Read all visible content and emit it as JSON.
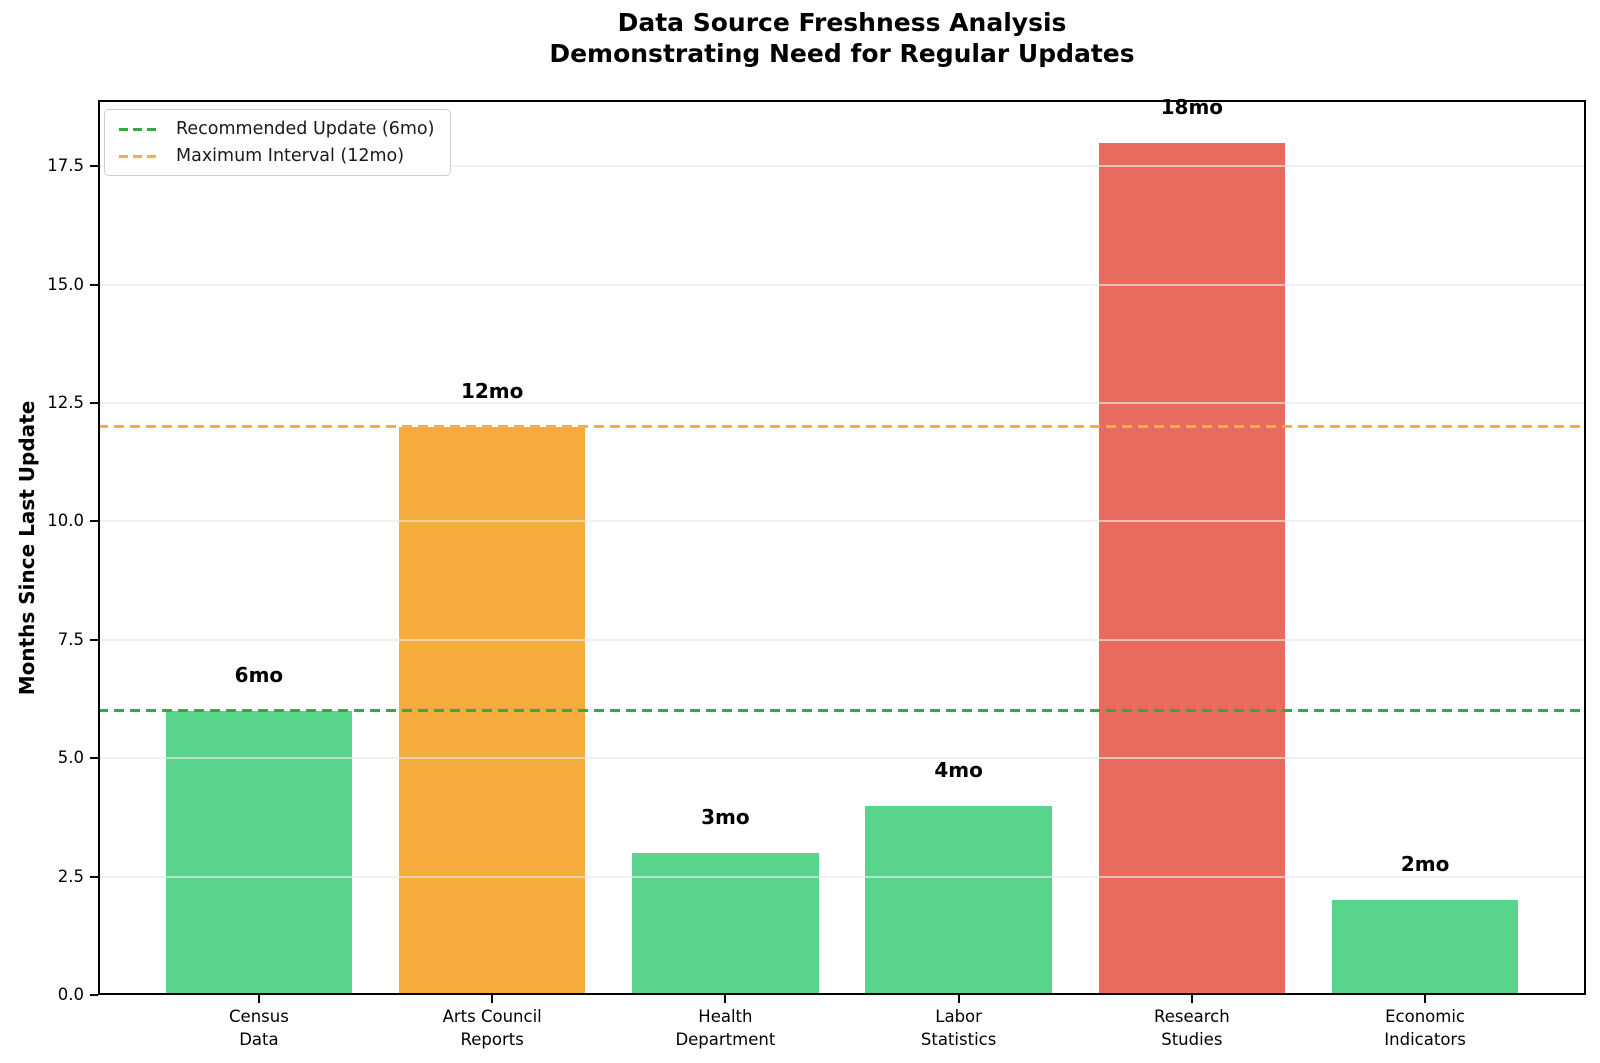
{
  "chart_data": {
    "type": "bar",
    "title": "Data Source Freshness Analysis\nDemonstrating Need for Regular Updates",
    "ylabel": "Months Since Last Update",
    "xlabel": "",
    "categories": [
      "Census\nData",
      "Arts Council\nReports",
      "Health\nDepartment",
      "Labor\nStatistics",
      "Research\nStudies",
      "Economic\nIndicators"
    ],
    "values": [
      6,
      12,
      3,
      4,
      18,
      2
    ],
    "bar_labels": [
      "6mo",
      "12mo",
      "3mo",
      "4mo",
      "18mo",
      "2mo"
    ],
    "bar_colors": [
      "#58D48C",
      "#F5AC3D",
      "#58D48C",
      "#58D48C",
      "#E96B5D",
      "#58D48C"
    ],
    "ylim": [
      0,
      18.9
    ],
    "yticks": [
      0.0,
      2.5,
      5.0,
      7.5,
      10.0,
      12.5,
      15.0,
      17.5
    ],
    "ytick_labels": [
      "0.0",
      "2.5",
      "5.0",
      "7.5",
      "10.0",
      "12.5",
      "15.0",
      "17.5"
    ],
    "grid": true,
    "legend_position": "upper left",
    "reference_lines": [
      {
        "label": "Recommended Update (6mo)",
        "value": 6,
        "color": "#3CA63E"
      },
      {
        "label": "Maximum Interval (12mo)",
        "value": 12,
        "color": "#FDAE3C"
      }
    ]
  }
}
